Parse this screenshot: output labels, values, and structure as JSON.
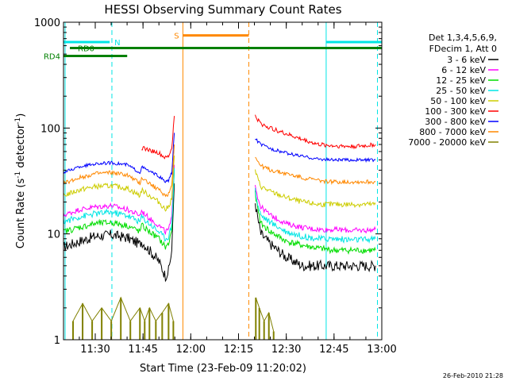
{
  "chart_data": {
    "type": "line",
    "title": "HESSI Observing Summary Count Rates",
    "xlabel": "Start Time (23-Feb-09 11:20:02)",
    "ylabel": "Count Rate (s⁻¹ detector⁻¹)",
    "ylabel_main": "Count Rate (s",
    "ylabel_sup1": "-1",
    "ylabel_mid": " detector",
    "ylabel_sup2": "-1",
    "ylabel_end": ")",
    "yscale": "log",
    "ylim": [
      1,
      1000
    ],
    "xlim_minutes": [
      0,
      99.97
    ],
    "x_ticks": [
      "11:30",
      "11:45",
      "12:00",
      "12:15",
      "12:30",
      "12:45",
      "13:00"
    ],
    "x_tick_minutes": [
      9.97,
      24.97,
      39.97,
      54.97,
      69.97,
      84.97,
      99.97
    ],
    "y_ticks": [
      "1",
      "10",
      "100",
      "1000"
    ],
    "y_tick_values": [
      1,
      10,
      100,
      1000
    ],
    "legend_title": [
      "Det 1,3,4,5,6,9,",
      "FDecim 1, Att 0"
    ],
    "legend_placement": "right",
    "footer_date": "26-Feb-2010 21:28",
    "series": [
      {
        "name": "3 - 6 keV",
        "color": "#000000",
        "x": [
          0,
          5,
          10,
          15,
          20,
          24,
          24.5,
          27,
          30,
          32,
          33,
          34,
          34.8,
          60.2,
          61,
          62,
          65,
          70,
          75,
          80,
          85,
          90,
          95,
          98
        ],
        "y": [
          7.5,
          8.5,
          9.5,
          9.8,
          9.2,
          8,
          8.5,
          7,
          5.5,
          4,
          4.5,
          7,
          30,
          20,
          14,
          10,
          8,
          6,
          5,
          5,
          5,
          5,
          5,
          5
        ]
      },
      {
        "name": "6 - 12 keV",
        "color": "#ff00ff",
        "x": [
          0,
          5,
          10,
          15,
          20,
          24,
          24.5,
          27,
          30,
          32,
          33,
          34,
          34.8,
          60.2,
          61,
          62,
          65,
          70,
          75,
          80,
          85,
          90,
          95,
          98
        ],
        "y": [
          15,
          17,
          18,
          18.5,
          17,
          15,
          16.5,
          14,
          12,
          10.5,
          11,
          14,
          45,
          30,
          22,
          18,
          15,
          12.5,
          11.5,
          11,
          11,
          10.8,
          10.8,
          11
        ]
      },
      {
        "name": "12 - 25 keV",
        "color": "#00dd00",
        "x": [
          0,
          5,
          10,
          15,
          20,
          24,
          24.5,
          27,
          30,
          32,
          33,
          34,
          34.8,
          60.2,
          61,
          62,
          65,
          70,
          75,
          80,
          85,
          90,
          95,
          98
        ],
        "y": [
          10.5,
          11.5,
          12.5,
          12.8,
          12,
          10.5,
          12,
          10.5,
          9,
          7.5,
          8,
          11,
          40,
          24,
          17,
          12.5,
          10.5,
          8.5,
          7.8,
          7.3,
          7,
          7,
          7,
          7
        ]
      },
      {
        "name": "25 - 50 keV",
        "color": "#00e5e5",
        "x": [
          0,
          5,
          10,
          15,
          20,
          24,
          24.5,
          27,
          30,
          32,
          33,
          34,
          34.8,
          60.2,
          61,
          62,
          65,
          70,
          75,
          80,
          85,
          90,
          95,
          98
        ],
        "y": [
          13,
          14.5,
          15.5,
          16,
          15,
          13,
          14.5,
          12.5,
          10.5,
          9,
          9.5,
          12,
          42,
          26,
          19,
          15,
          12.8,
          10.5,
          9.5,
          9,
          9,
          8.8,
          8.8,
          9
        ]
      },
      {
        "name": "50 - 100 keV",
        "color": "#cccc00",
        "x": [
          0,
          5,
          10,
          15,
          20,
          24,
          24.5,
          27,
          30,
          32,
          33,
          34,
          34.8,
          60.2,
          61,
          62,
          65,
          70,
          75,
          80,
          85,
          90,
          95,
          98
        ],
        "y": [
          23,
          26,
          28,
          28.5,
          27,
          23,
          26,
          23,
          20,
          17,
          18,
          22,
          55,
          40,
          33,
          28,
          25,
          22,
          20,
          19,
          19,
          19,
          19,
          19
        ]
      },
      {
        "name": "100 - 300 keV",
        "color": "#ff0000",
        "x": [
          24.5,
          27,
          30,
          32,
          33,
          34,
          34.8,
          60.2,
          61,
          62,
          65,
          70,
          75,
          80,
          85,
          90,
          95,
          98
        ],
        "y": [
          65,
          62,
          58,
          52,
          54,
          65,
          130,
          130,
          120,
          110,
          100,
          88,
          78,
          70,
          68,
          67,
          68,
          70
        ]
      },
      {
        "name": "300 - 800 keV",
        "color": "#0000ff",
        "x": [
          0,
          5,
          10,
          15,
          20,
          24,
          24.5,
          27,
          30,
          32,
          33,
          34,
          34.8,
          60.2,
          61,
          62,
          65,
          70,
          75,
          80,
          85,
          90,
          95,
          98
        ],
        "y": [
          38,
          43,
          46,
          47,
          45,
          38,
          43,
          39,
          35,
          31,
          32,
          38,
          90,
          80,
          75,
          70,
          64,
          58,
          54,
          51,
          50,
          50,
          50,
          50
        ]
      },
      {
        "name": "800 - 7000 keV",
        "color": "#ff8800",
        "x": [
          0,
          5,
          10,
          15,
          20,
          24,
          24.5,
          27,
          30,
          32,
          33,
          34,
          34.8,
          60.2,
          61,
          62,
          65,
          70,
          75,
          80,
          85,
          90,
          95,
          98
        ],
        "y": [
          30,
          34,
          37,
          38,
          36,
          30,
          34,
          30,
          26,
          23,
          24,
          29,
          70,
          55,
          48,
          44,
          40,
          37,
          34,
          32,
          31,
          31,
          31,
          31
        ]
      },
      {
        "name": "7000 - 20000 keV",
        "color": "#808000",
        "x": [
          3,
          6,
          9,
          12,
          15,
          18,
          21,
          24,
          25.5,
          27,
          29,
          31,
          33,
          34.5,
          60.4,
          61.5,
          63,
          64.5,
          66
        ],
        "y": [
          1.5,
          2.2,
          1.5,
          2.0,
          1.5,
          2.5,
          1.5,
          2.0,
          1.5,
          2.0,
          1.5,
          1.8,
          2.2,
          1.5,
          2.5,
          2.0,
          1.5,
          1.8,
          1.2
        ]
      }
    ],
    "annotations": {
      "flags": [
        {
          "label": "N",
          "color": "#00e5e5",
          "segments": [
            [
              0,
              14.5
            ],
            [
              82.5,
              99.97
            ]
          ],
          "value": 650
        },
        {
          "label": "S",
          "color": "#ff8800",
          "segments": [
            [
              37.5,
              58.2
            ]
          ],
          "value": 750
        },
        {
          "label": "RD0",
          "color": "#008000",
          "segments": [
            [
              2,
              99.97
            ]
          ],
          "value": 570
        },
        {
          "label": "RD4",
          "color": "#008000",
          "segments": [
            [
              0,
              20
            ]
          ],
          "value": 480
        }
      ],
      "vlines": [
        {
          "minute": 0.5,
          "color": "#00e5e5",
          "style": "solid"
        },
        {
          "minute": 15.2,
          "color": "#00e5e5",
          "style": "dashed"
        },
        {
          "minute": 37.5,
          "color": "#ff8800",
          "style": "solid"
        },
        {
          "minute": 58.2,
          "color": "#ff8800",
          "style": "dashed"
        },
        {
          "minute": 82.5,
          "color": "#00e5e5",
          "style": "solid"
        },
        {
          "minute": 98.6,
          "color": "#00e5e5",
          "style": "dashed"
        }
      ]
    }
  }
}
